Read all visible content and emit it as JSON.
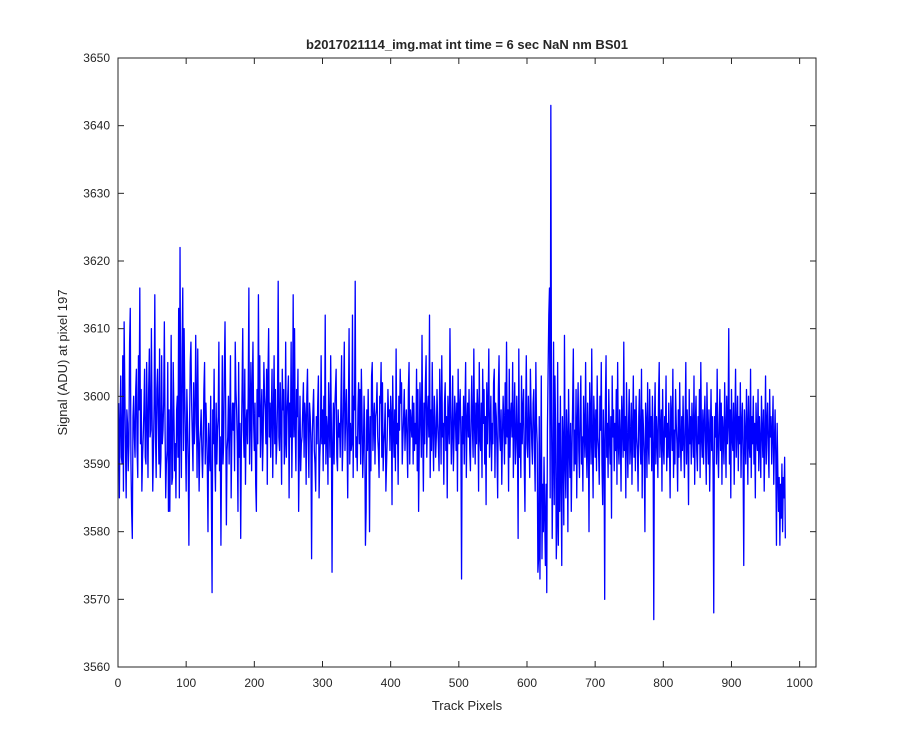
{
  "chart_data": {
    "type": "line",
    "title": "b2017021114_img.mat int time = 6 sec  NaN nm BS01",
    "xlabel": "Track Pixels",
    "ylabel": "Signal (ADU) at pixel 197",
    "xlim": [
      0,
      1024
    ],
    "ylim": [
      3560,
      3650
    ],
    "xticks": [
      0,
      100,
      200,
      300,
      400,
      500,
      600,
      700,
      800,
      900,
      1000
    ],
    "yticks": [
      3560,
      3570,
      3580,
      3590,
      3600,
      3610,
      3620,
      3630,
      3640,
      3650
    ],
    "grid": false,
    "legend": "none",
    "line_color": "#0000ff",
    "series": [
      {
        "x_start": 1,
        "x_step": 1,
        "values": [
          3599,
          3585,
          3596,
          3603,
          3591,
          3590,
          3606,
          3586,
          3611,
          3601,
          3592,
          3585,
          3598,
          3596,
          3589,
          3593,
          3608,
          3613,
          3590,
          3583,
          3579,
          3597,
          3600,
          3594,
          3591,
          3601,
          3604,
          3592,
          3588,
          3606,
          3598,
          3616,
          3593,
          3601,
          3586,
          3591,
          3594,
          3598,
          3604,
          3591,
          3590,
          3605,
          3597,
          3588,
          3601,
          3607,
          3594,
          3595,
          3610,
          3597,
          3586,
          3592,
          3599,
          3615,
          3594,
          3588,
          3601,
          3604,
          3597,
          3590,
          3607,
          3588,
          3591,
          3606,
          3593,
          3595,
          3599,
          3611,
          3596,
          3585,
          3590,
          3592,
          3605,
          3583,
          3598,
          3583,
          3594,
          3609,
          3587,
          3588,
          3605,
          3598,
          3589,
          3593,
          3585,
          3598,
          3600,
          3591,
          3613,
          3585,
          3622,
          3596,
          3588,
          3607,
          3616,
          3592,
          3610,
          3600,
          3593,
          3586,
          3601,
          3596,
          3590,
          3578,
          3596,
          3605,
          3608,
          3599,
          3594,
          3589,
          3602,
          3593,
          3596,
          3609,
          3600,
          3588,
          3607,
          3594,
          3586,
          3593,
          3595,
          3598,
          3592,
          3588,
          3593,
          3601,
          3605,
          3590,
          3599,
          3595,
          3590,
          3580,
          3596,
          3592,
          3589,
          3600,
          3585,
          3571,
          3598,
          3593,
          3604,
          3591,
          3586,
          3599,
          3590,
          3595,
          3597,
          3608,
          3589,
          3594,
          3578,
          3592,
          3606,
          3590,
          3593,
          3604,
          3611,
          3598,
          3581,
          3592,
          3594,
          3600,
          3590,
          3597,
          3606,
          3585,
          3594,
          3599,
          3595,
          3599,
          3589,
          3608,
          3601,
          3598,
          3593,
          3583,
          3605,
          3591,
          3596,
          3579,
          3593,
          3601,
          3610,
          3595,
          3591,
          3604,
          3587,
          3596,
          3598,
          3593,
          3600,
          3616,
          3590,
          3597,
          3605,
          3589,
          3601,
          3608,
          3596,
          3592,
          3599,
          3587,
          3583,
          3601,
          3593,
          3615,
          3597,
          3606,
          3591,
          3597,
          3601,
          3589,
          3594,
          3605,
          3600,
          3598,
          3593,
          3604,
          3587,
          3603,
          3610,
          3594,
          3599,
          3591,
          3598,
          3604,
          3588,
          3597,
          3606,
          3593,
          3601,
          3590,
          3593,
          3599,
          3617,
          3594,
          3592,
          3602,
          3596,
          3587,
          3604,
          3598,
          3601,
          3590,
          3593,
          3608,
          3591,
          3597,
          3600,
          3603,
          3585,
          3599,
          3594,
          3608,
          3588,
          3596,
          3615,
          3594,
          3610,
          3595,
          3589,
          3601,
          3597,
          3604,
          3583,
          3592,
          3600,
          3589,
          3593,
          3594,
          3598,
          3602,
          3591,
          3599,
          3597,
          3587,
          3600,
          3604,
          3594,
          3588,
          3599,
          3597,
          3593,
          3576,
          3594,
          3598,
          3601,
          3592,
          3590,
          3586,
          3597,
          3593,
          3599,
          3603,
          3585,
          3591,
          3594,
          3606,
          3593,
          3598,
          3589,
          3600,
          3593,
          3612,
          3590,
          3597,
          3595,
          3587,
          3602,
          3596,
          3591,
          3606,
          3596,
          3574,
          3593,
          3599,
          3590,
          3598,
          3601,
          3604,
          3591,
          3589,
          3598,
          3594,
          3596,
          3591,
          3599,
          3606,
          3589,
          3593,
          3600,
          3608,
          3592,
          3597,
          3601,
          3594,
          3585,
          3598,
          3610,
          3590,
          3596,
          3592,
          3593,
          3612,
          3588,
          3600,
          3598,
          3617,
          3591,
          3594,
          3589,
          3598,
          3602,
          3593,
          3601,
          3590,
          3604,
          3597,
          3588,
          3592,
          3600,
          3595,
          3578,
          3583,
          3598,
          3592,
          3601,
          3594,
          3580,
          3597,
          3589,
          3603,
          3605,
          3592,
          3596,
          3599,
          3590,
          3597,
          3598,
          3602,
          3594,
          3592,
          3588,
          3600,
          3599,
          3605,
          3591,
          3602,
          3589,
          3593,
          3595,
          3599,
          3586,
          3590,
          3594,
          3601,
          3597,
          3598,
          3592,
          3600,
          3597,
          3584,
          3603,
          3595,
          3591,
          3598,
          3589,
          3607,
          3593,
          3596,
          3587,
          3600,
          3595,
          3604,
          3599,
          3602,
          3590,
          3594,
          3597,
          3601,
          3592,
          3596,
          3598,
          3593,
          3588,
          3601,
          3605,
          3590,
          3598,
          3596,
          3594,
          3600,
          3590,
          3599,
          3592,
          3596,
          3593,
          3604,
          3589,
          3601,
          3583,
          3593,
          3602,
          3597,
          3591,
          3609,
          3595,
          3586,
          3599,
          3593,
          3602,
          3606,
          3591,
          3597,
          3600,
          3594,
          3612,
          3588,
          3598,
          3592,
          3605,
          3595,
          3589,
          3600,
          3597,
          3591,
          3594,
          3601,
          3596,
          3593,
          3589,
          3604,
          3598,
          3590,
          3606,
          3594,
          3596,
          3587,
          3599,
          3602,
          3592,
          3597,
          3585,
          3600,
          3596,
          3593,
          3610,
          3598,
          3590,
          3595,
          3603,
          3589,
          3594,
          3600,
          3597,
          3592,
          3599,
          3586,
          3604,
          3593,
          3598,
          3601,
          3594,
          3573,
          3597,
          3593,
          3600,
          3590,
          3598,
          3605,
          3588,
          3596,
          3599,
          3594,
          3601,
          3592,
          3589,
          3597,
          3603,
          3595,
          3591,
          3607,
          3596,
          3590,
          3599,
          3593,
          3601,
          3598,
          3586,
          3605,
          3594,
          3592,
          3599,
          3588,
          3604,
          3596,
          3601,
          3590,
          3597,
          3584,
          3602,
          3593,
          3599,
          3607,
          3591,
          3595,
          3600,
          3589,
          3596,
          3593,
          3602,
          3604,
          3588,
          3599,
          3597,
          3592,
          3585,
          3601,
          3606,
          3594,
          3592,
          3598,
          3587,
          3594,
          3600,
          3596,
          3590,
          3602,
          3593,
          3608,
          3594,
          3598,
          3586,
          3604,
          3591,
          3597,
          3599,
          3594,
          3605,
          3588,
          3596,
          3602,
          3590,
          3593,
          3600,
          3594,
          3579,
          3607,
          3591,
          3596,
          3588,
          3603,
          3593,
          3598,
          3601,
          3590,
          3583,
          3597,
          3606,
          3593,
          3591,
          3600,
          3595,
          3588,
          3604,
          3598,
          3593,
          3590,
          3599,
          3601,
          3592,
          3586,
          3605,
          3596,
          3593,
          3574,
          3576,
          3597,
          3573,
          3588,
          3603,
          3576,
          3587,
          3580,
          3591,
          3582,
          3575,
          3587,
          3571,
          3595,
          3604,
          3612,
          3616,
          3585,
          3643,
          3598,
          3579,
          3590,
          3608,
          3584,
          3603,
          3595,
          3576,
          3581,
          3605,
          3578,
          3596,
          3583,
          3600,
          3588,
          3575,
          3597,
          3593,
          3581,
          3609,
          3590,
          3585,
          3598,
          3594,
          3580,
          3601,
          3593,
          3588,
          3596,
          3583,
          3592,
          3599,
          3607,
          3589,
          3595,
          3590,
          3601,
          3585,
          3596,
          3602,
          3592,
          3588,
          3598,
          3603,
          3590,
          3594,
          3586,
          3600,
          3595,
          3591,
          3605,
          3593,
          3588,
          3599,
          3594,
          3580,
          3602,
          3597,
          3590,
          3607,
          3593,
          3585,
          3600,
          3596,
          3591,
          3598,
          3589,
          3603,
          3594,
          3592,
          3587,
          3600,
          3595,
          3605,
          3590,
          3584,
          3598,
          3593,
          3570,
          3599,
          3606,
          3591,
          3596,
          3588,
          3601,
          3594,
          3590,
          3597,
          3582,
          3603,
          3594,
          3598,
          3589,
          3596,
          3592,
          3601,
          3587,
          3605,
          3593,
          3590,
          3598,
          3594,
          3586,
          3600,
          3596,
          3591,
          3608,
          3592,
          3597,
          3585,
          3602,
          3594,
          3588,
          3596,
          3601,
          3590,
          3593,
          3599,
          3587,
          3595,
          3603,
          3591,
          3598,
          3589,
          3600,
          3594,
          3592,
          3586,
          3597,
          3601,
          3593,
          3590,
          3604,
          3585,
          3598,
          3595,
          3591,
          3580,
          3599,
          3596,
          3588,
          3602,
          3593,
          3590,
          3601,
          3594,
          3597,
          3589,
          3600,
          3593,
          3567,
          3596,
          3602,
          3590,
          3597,
          3594,
          3588,
          3600,
          3605,
          3591,
          3595,
          3598,
          3586,
          3601,
          3593,
          3590,
          3597,
          3594,
          3603,
          3589,
          3596,
          3591,
          3599,
          3593,
          3585,
          3600,
          3597,
          3592,
          3604,
          3588,
          3595,
          3590,
          3601,
          3596,
          3593,
          3586,
          3598,
          3591,
          3602,
          3594,
          3589,
          3597,
          3592,
          3600,
          3593,
          3588,
          3596,
          3605,
          3590,
          3598,
          3594,
          3584,
          3601,
          3593,
          3597,
          3590,
          3599,
          3595,
          3591,
          3603,
          3587,
          3596,
          3600,
          3592,
          3589,
          3597,
          3593,
          3601,
          3588,
          3605,
          3594,
          3591,
          3598,
          3590,
          3596,
          3600,
          3593,
          3587,
          3602,
          3595,
          3590,
          3598,
          3586,
          3594,
          3601,
          3592,
          3597,
          3589,
          3568,
          3597,
          3594,
          3599,
          3590,
          3604,
          3593,
          3588,
          3596,
          3601,
          3592,
          3599,
          3587,
          3597,
          3594,
          3590,
          3602,
          3595,
          3588,
          3600,
          3593,
          3596,
          3610,
          3590,
          3598,
          3585,
          3601,
          3594,
          3592,
          3599,
          3587,
          3596,
          3604,
          3591,
          3595,
          3600,
          3589,
          3597,
          3593,
          3602,
          3588,
          3596,
          3599,
          3591,
          3575,
          3598,
          3594,
          3590,
          3601,
          3596,
          3587,
          3600,
          3593,
          3591,
          3604,
          3588,
          3597,
          3593,
          3600,
          3590,
          3596,
          3585,
          3599,
          3594,
          3592,
          3601,
          3589,
          3597,
          3593,
          3588,
          3600,
          3595,
          3591,
          3598,
          3586,
          3594,
          3603,
          3590,
          3596,
          3599,
          3592,
          3588,
          3601,
          3594,
          3597,
          3590,
          3595,
          3600,
          3587,
          3593,
          3598,
          3591,
          3578,
          3596,
          3589,
          3583,
          3588,
          3578,
          3587,
          3582,
          3590,
          3580,
          3588,
          3585,
          3591,
          3579
        ]
      }
    ]
  }
}
